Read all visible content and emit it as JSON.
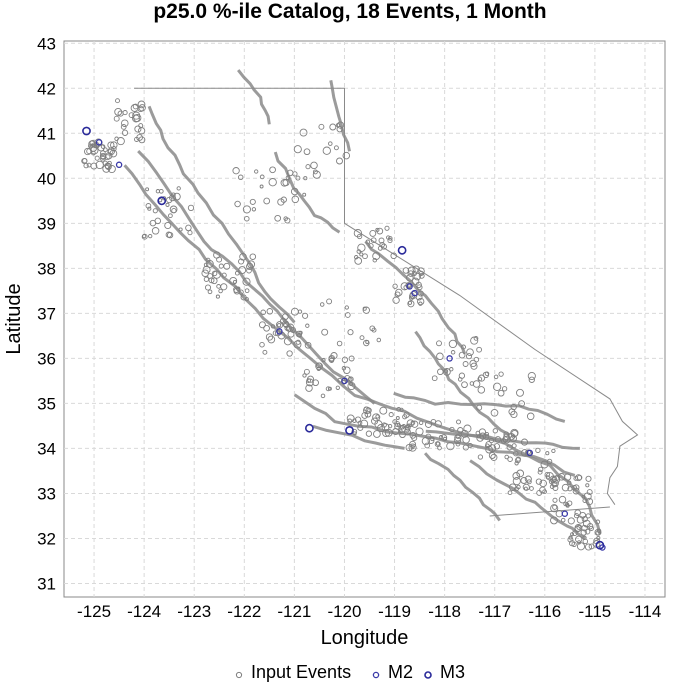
{
  "chart_data": {
    "type": "scatter",
    "title": "p25.0 %-ile Catalog, 18 Events, 1 Month",
    "xlabel": "Longitude",
    "ylabel": "Latitude",
    "xlim": [
      -125.6,
      -113.6
    ],
    "ylim": [
      30.7,
      43.05
    ],
    "xticks": [
      -125,
      -124,
      -123,
      -122,
      -121,
      -120,
      -119,
      -118,
      -117,
      -116,
      -115,
      -114
    ],
    "yticks": [
      31,
      32,
      33,
      34,
      35,
      36,
      37,
      38,
      39,
      40,
      41,
      42,
      43
    ],
    "grid": true,
    "legend_position": "bottom",
    "colors": {
      "input": "#7f7f7f",
      "m2": "#3a3aa8",
      "m3": "#2a2a9a",
      "fault": "#8a8a8a",
      "boundary": "#8a8a8a"
    },
    "series": [
      {
        "name": "M2",
        "x": [
          -124.9,
          -124.5,
          -121.3,
          -120.0,
          -118.7,
          -118.6,
          -117.9,
          -116.3,
          -115.6,
          -114.85
        ],
        "y": [
          40.8,
          40.3,
          36.6,
          35.5,
          37.6,
          37.45,
          36.0,
          33.9,
          32.55,
          31.8
        ]
      },
      {
        "name": "M3",
        "x": [
          -125.15,
          -123.65,
          -120.7,
          -119.9,
          -118.85,
          -114.9
        ],
        "y": [
          41.05,
          39.5,
          34.45,
          34.4,
          38.4,
          31.85
        ]
      }
    ],
    "legend": [
      "Input Events",
      "M2",
      "M3"
    ]
  }
}
